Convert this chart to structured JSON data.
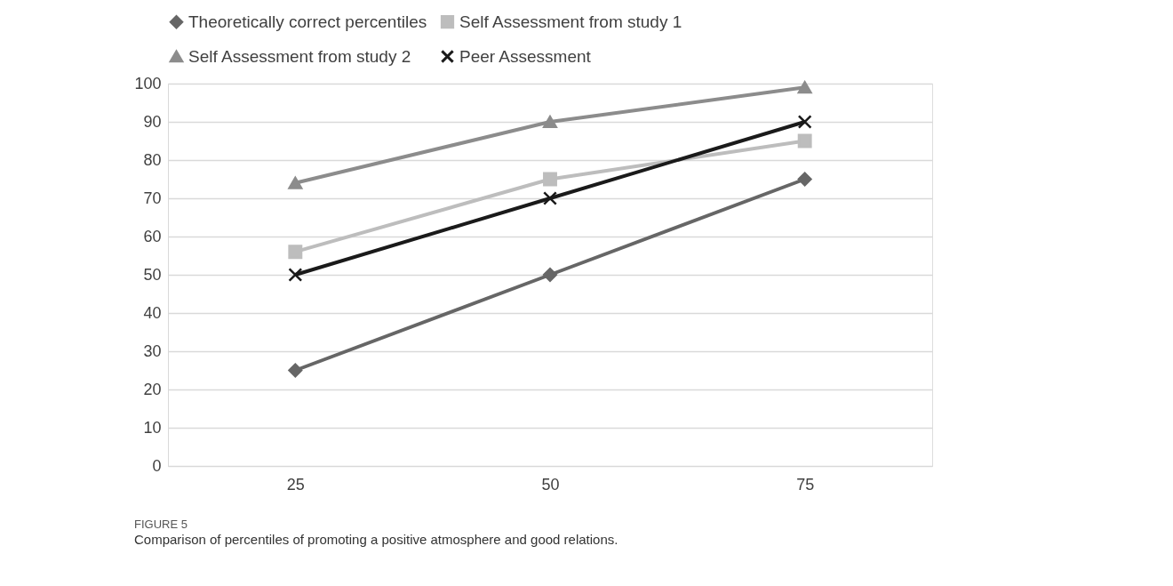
{
  "chart_data": {
    "type": "line",
    "categories": [
      "25",
      "50",
      "75"
    ],
    "series": [
      {
        "name": "Theoretically correct percentiles",
        "color": "#666666",
        "marker": "diamond",
        "values": [
          25,
          50,
          75
        ]
      },
      {
        "name": "Self Assessment from study 1",
        "color": "#bdbdbd",
        "marker": "square",
        "values": [
          56,
          75,
          85
        ]
      },
      {
        "name": "Self Assessment from study 2",
        "color": "#8c8c8c",
        "marker": "triangle",
        "values": [
          74,
          90,
          99
        ]
      },
      {
        "name": "Peer Assessment",
        "color": "#1a1a1a",
        "marker": "cross",
        "values": [
          50,
          70,
          90
        ]
      }
    ],
    "ylim": [
      0,
      100
    ],
    "yticks": [
      0,
      10,
      20,
      30,
      40,
      50,
      60,
      70,
      80,
      90,
      100
    ],
    "grid": "y",
    "legend": "top",
    "annotations": [
      "FIGURE 5",
      "Comparison of percentiles of promoting a positive atmosphere and good relations."
    ]
  }
}
